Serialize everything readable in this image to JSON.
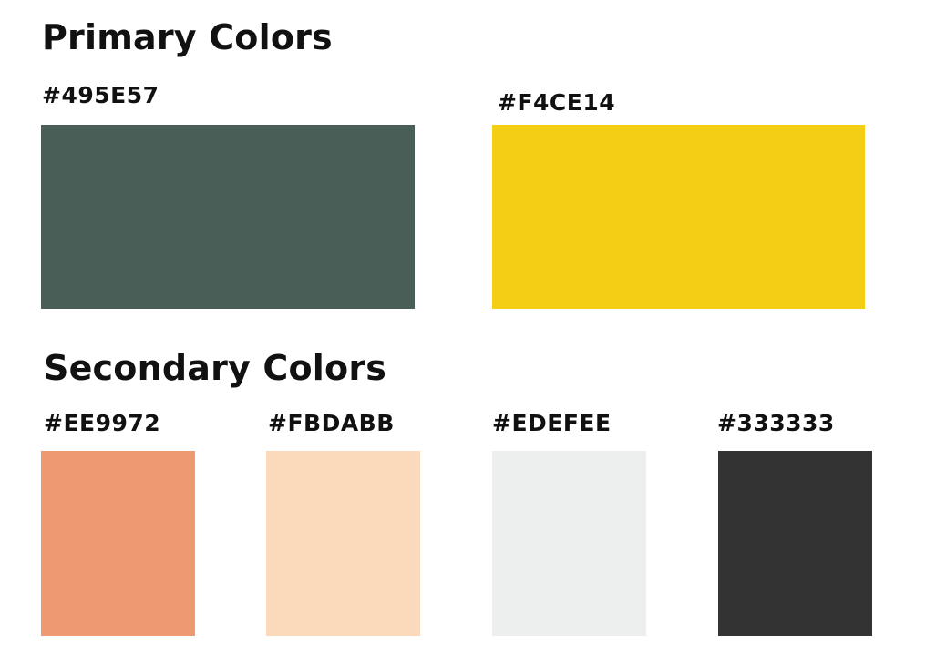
{
  "primary": {
    "title": "Primary Colors",
    "swatches": [
      {
        "label": "#495E57",
        "color": "#495E57"
      },
      {
        "label": "#F4CE14",
        "color": "#F4CE14"
      }
    ]
  },
  "secondary": {
    "title": "Secondary Colors",
    "swatches": [
      {
        "label": "#EE9972",
        "color": "#EE9972"
      },
      {
        "label": "#FBDABB",
        "color": "#FBDABB"
      },
      {
        "label": "#EDEFEE",
        "color": "#EDEFEE"
      },
      {
        "label": "#333333",
        "color": "#333333"
      }
    ]
  }
}
